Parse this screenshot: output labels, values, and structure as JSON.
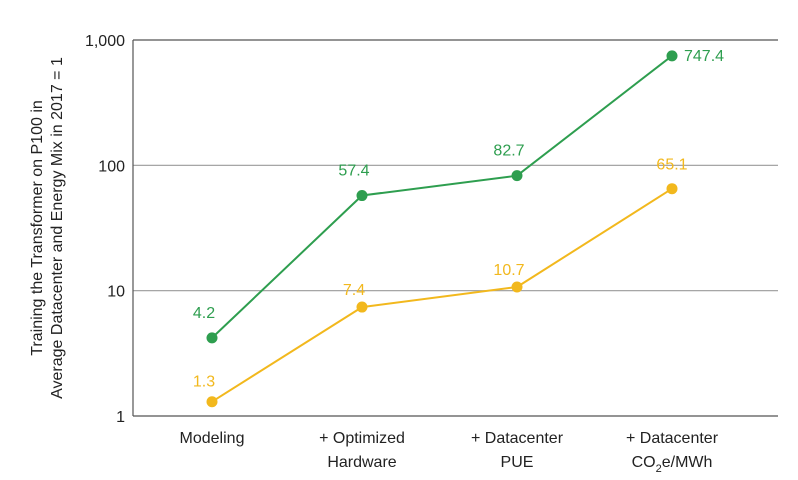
{
  "chart_data": {
    "type": "line",
    "title": "",
    "yscale": "log",
    "ylim": [
      1,
      1000
    ],
    "yticks": [
      "1",
      "10",
      "100",
      "1,000"
    ],
    "ylabel_lines": [
      "Training the Transformer on P100 in",
      "Average Datacenter and Energy Mix in 2017 = 1"
    ],
    "grid": "horizontal at 10 and 100",
    "categories": [
      {
        "line1": "Modeling",
        "line2": ""
      },
      {
        "line1": "+ Optimized",
        "line2": "Hardware"
      },
      {
        "line1": "+ Datacenter",
        "line2": "PUE"
      },
      {
        "line1": "+ Datacenter",
        "line2": "CO2e/MWh"
      }
    ],
    "series": [
      {
        "color": "#2e9e4f",
        "values": [
          4.2,
          57.4,
          82.7,
          747.4
        ],
        "labels": [
          "4.2",
          "57.4",
          "82.7",
          "747.4"
        ]
      },
      {
        "color": "#f2b81d",
        "values": [
          1.3,
          7.4,
          10.7,
          65.1
        ],
        "labels": [
          "1.3",
          "7.4",
          "10.7",
          "65.1"
        ]
      }
    ]
  }
}
